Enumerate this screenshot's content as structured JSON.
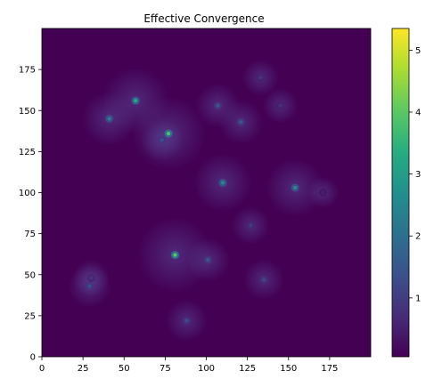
{
  "chart_data": {
    "type": "heatmap",
    "title": "Effective Convergence",
    "xlabel": "",
    "ylabel": "",
    "xlim": [
      0,
      200
    ],
    "ylim": [
      0,
      200
    ],
    "x_ticks": [
      0,
      25,
      50,
      75,
      100,
      125,
      150,
      175
    ],
    "y_ticks": [
      0,
      25,
      50,
      75,
      100,
      125,
      150,
      175
    ],
    "colormap": "viridis",
    "colorbar": {
      "range": [
        0.05,
        5.35
      ],
      "ticks": [
        1,
        2,
        3,
        4,
        5
      ]
    },
    "background_value": 0.1,
    "peaks": [
      {
        "x": 57,
        "y": 156,
        "value": 3.3
      },
      {
        "x": 77,
        "y": 136,
        "value": 3.9
      },
      {
        "x": 41,
        "y": 145,
        "value": 2.3
      },
      {
        "x": 73,
        "y": 132,
        "value": 1.4
      },
      {
        "x": 107,
        "y": 153,
        "value": 1.5
      },
      {
        "x": 121,
        "y": 143,
        "value": 1.5
      },
      {
        "x": 133,
        "y": 170,
        "value": 0.9
      },
      {
        "x": 145,
        "y": 153,
        "value": 0.8
      },
      {
        "x": 110,
        "y": 106,
        "value": 2.6
      },
      {
        "x": 154,
        "y": 103,
        "value": 2.6
      },
      {
        "x": 171,
        "y": 100,
        "value": 0.5
      },
      {
        "x": 127,
        "y": 80,
        "value": 1.0
      },
      {
        "x": 81,
        "y": 62,
        "value": 4.0
      },
      {
        "x": 101,
        "y": 59,
        "value": 1.5
      },
      {
        "x": 135,
        "y": 47,
        "value": 1.2
      },
      {
        "x": 30,
        "y": 48,
        "value": 0.9
      },
      {
        "x": 29,
        "y": 43,
        "value": 1.4
      },
      {
        "x": 88,
        "y": 22,
        "value": 1.3
      }
    ]
  }
}
